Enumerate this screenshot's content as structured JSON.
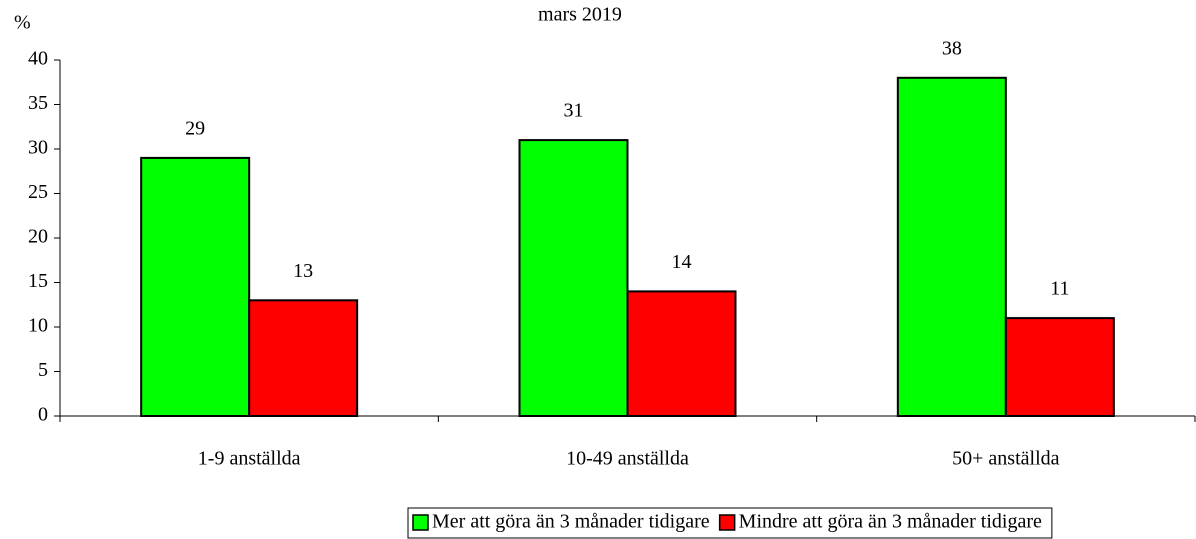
{
  "chart_data": {
    "type": "bar",
    "title": "mars 2019",
    "y_axis_label": "%",
    "categories": [
      "1-9 anställda",
      "10-49 anställda",
      "50+ anställda"
    ],
    "series": [
      {
        "name": "Mer att göra än 3 månader tidigare",
        "color": "#00ff00",
        "values": [
          29,
          31,
          38
        ]
      },
      {
        "name": "Mindre att göra än 3 månader tidigare",
        "color": "#ff0000",
        "values": [
          13,
          14,
          11
        ]
      }
    ],
    "ylim": [
      0,
      40
    ],
    "yticks": [
      0,
      5,
      10,
      15,
      20,
      25,
      30,
      35,
      40
    ],
    "legend": "bottom"
  }
}
